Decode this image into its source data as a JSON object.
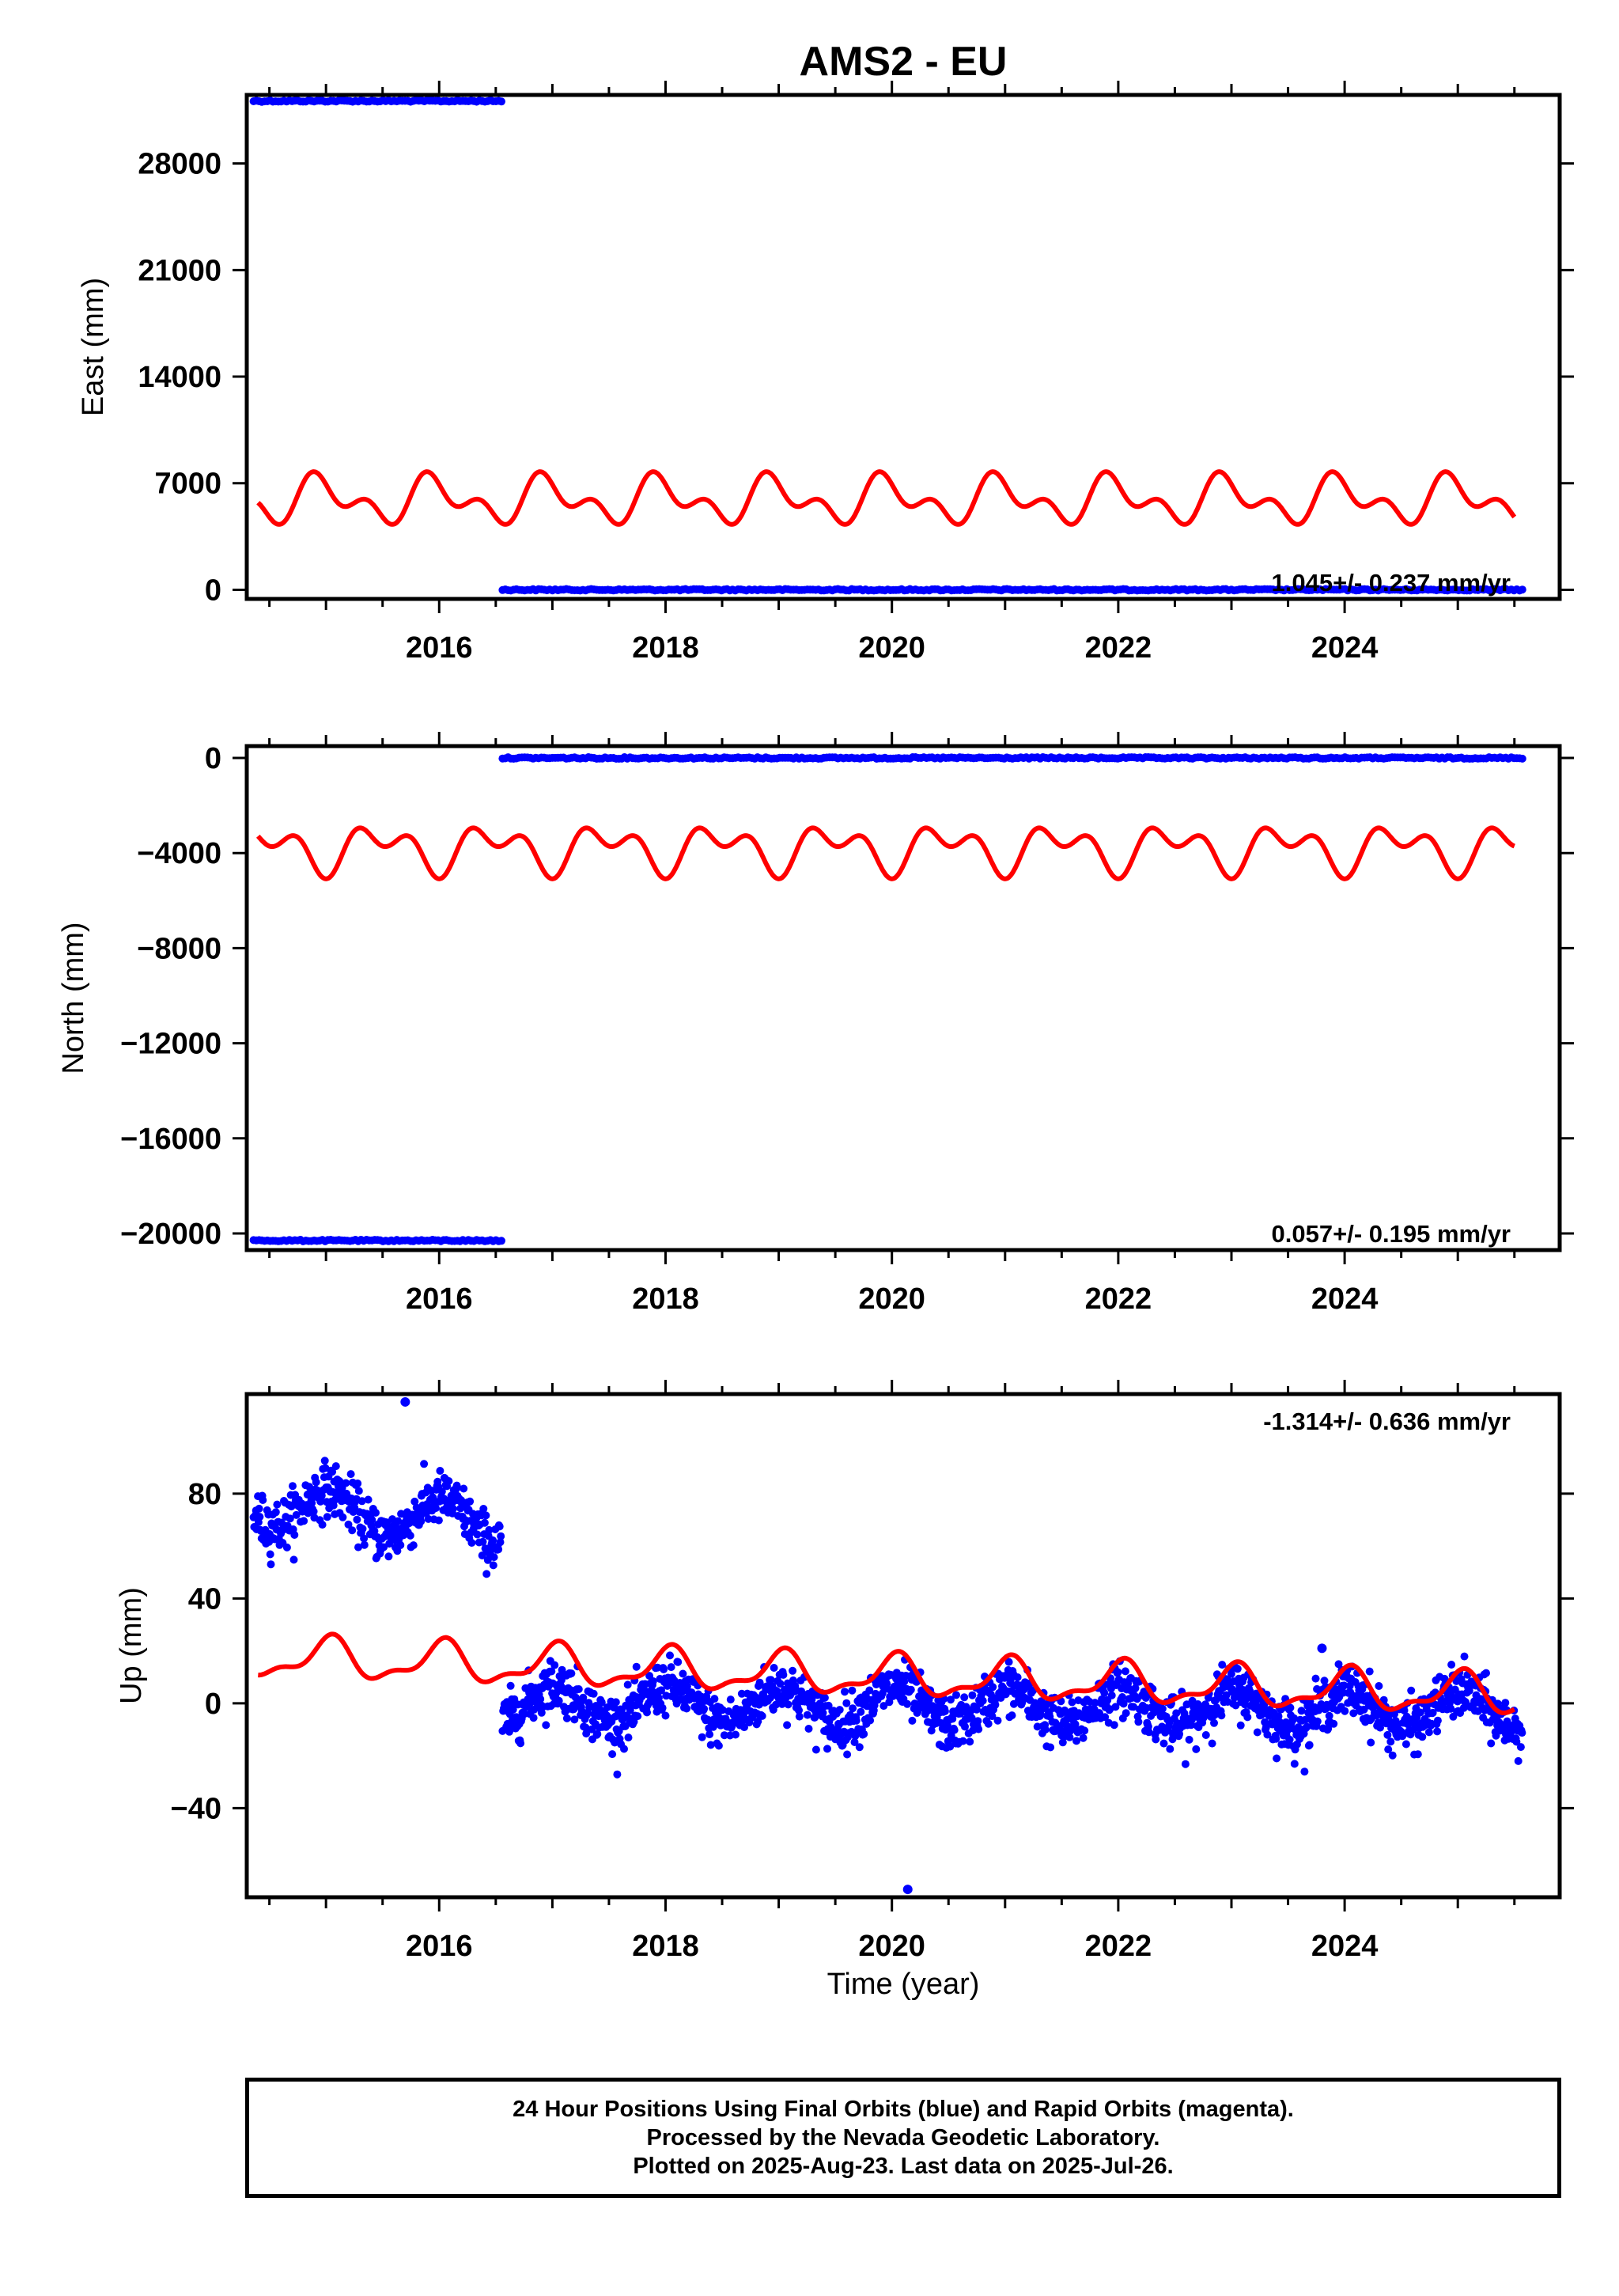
{
  "title": "AMS2 - EU",
  "xlabel": "Time (year)",
  "colors": {
    "final_orbits": "#0000ff",
    "model_fit": "#ff0000",
    "axes": "#000000"
  },
  "chart_data": [
    {
      "type": "scatter",
      "component": "east",
      "ylabel": "East (mm)",
      "rate_label": "1.045+/- 0.237 mm/yr",
      "xlim": [
        2014.3,
        2025.9
      ],
      "ylim": [
        -600,
        32500
      ],
      "xticks": [
        2016,
        2018,
        2020,
        2022,
        2024
      ],
      "yticks": [
        0,
        7000,
        14000,
        21000,
        28000
      ],
      "ytick_labels": [
        "0",
        "7000",
        "14000",
        "21000",
        "28000"
      ],
      "series": [
        {
          "kind": "positions",
          "segments": [
            {
              "x": [
                2014.36,
                2016.55
              ],
              "y": 32100
            },
            {
              "x": [
                2016.56,
                2025.57
              ],
              "y": 0
            }
          ]
        },
        {
          "kind": "model",
          "x_range": [
            2014.4,
            2025.5
          ],
          "offset": 5900,
          "slope": 0,
          "annual_amp": 1100,
          "annual_phase": 1.8,
          "semiannual_amp": 900,
          "semiannual_phase": 3.2
        }
      ]
    },
    {
      "type": "scatter",
      "component": "north",
      "ylabel": "North (mm)",
      "rate_label": "0.057+/- 0.195 mm/yr",
      "xlim": [
        2014.3,
        2025.9
      ],
      "ylim": [
        -20700,
        500
      ],
      "xticks": [
        2016,
        2018,
        2020,
        2022,
        2024
      ],
      "yticks": [
        0,
        -4000,
        -8000,
        -12000,
        -16000,
        -20000
      ],
      "ytick_labels": [
        "0",
        "−4000",
        "−8000",
        "−12000",
        "−16000",
        "−20000"
      ],
      "series": [
        {
          "kind": "positions",
          "segments": [
            {
              "x": [
                2014.36,
                2016.55
              ],
              "y": -20300
            },
            {
              "x": [
                2016.56,
                2025.57
              ],
              "y": 0
            }
          ]
        },
        {
          "kind": "model",
          "x_range": [
            2014.4,
            2025.5
          ],
          "offset": -3800,
          "slope": 0,
          "annual_amp": 700,
          "annual_phase": 4.9,
          "semiannual_amp": 600,
          "semiannual_phase": 4.6
        }
      ]
    },
    {
      "type": "scatter",
      "component": "up",
      "ylabel": "Up (mm)",
      "rate_label": "-1.314+/- 0.636 mm/yr",
      "xlim": [
        2014.3,
        2025.9
      ],
      "ylim": [
        -74,
        118
      ],
      "xticks": [
        2016,
        2018,
        2020,
        2022,
        2024
      ],
      "yticks": [
        -40,
        0,
        40,
        80
      ],
      "ytick_labels": [
        "−40",
        "0",
        "40",
        "80"
      ],
      "series": [
        {
          "kind": "positions",
          "segments": [
            {
              "x": [
                2014.36,
                2016.55
              ],
              "mean": 76,
              "slope": -3.5,
              "annual_amp": 8,
              "annual_phase": 1.4,
              "noise": 5
            },
            {
              "x": [
                2016.56,
                2025.57
              ],
              "mean": 0,
              "slope": -0.3,
              "annual_amp": 7,
              "annual_phase": 1.4,
              "noise": 5
            }
          ],
          "outliers": [
            [
              2015.7,
              115
            ],
            [
              2020.14,
              -71
            ],
            [
              2023.8,
              21
            ]
          ]
        },
        {
          "kind": "model",
          "x_range": [
            2014.4,
            2025.5
          ],
          "offset": 17.5,
          "slope": -1.314,
          "annual_amp": 7,
          "annual_phase": 1.4,
          "semiannual_amp": 3,
          "semiannual_phase": 0.6
        }
      ]
    }
  ],
  "footer": {
    "line1": "24 Hour Positions Using Final Orbits (blue) and Rapid Orbits (magenta).",
    "line2": "Processed by the Nevada Geodetic Laboratory.",
    "line3": "Plotted on 2025-Aug-23. Last data on 2025-Jul-26."
  }
}
